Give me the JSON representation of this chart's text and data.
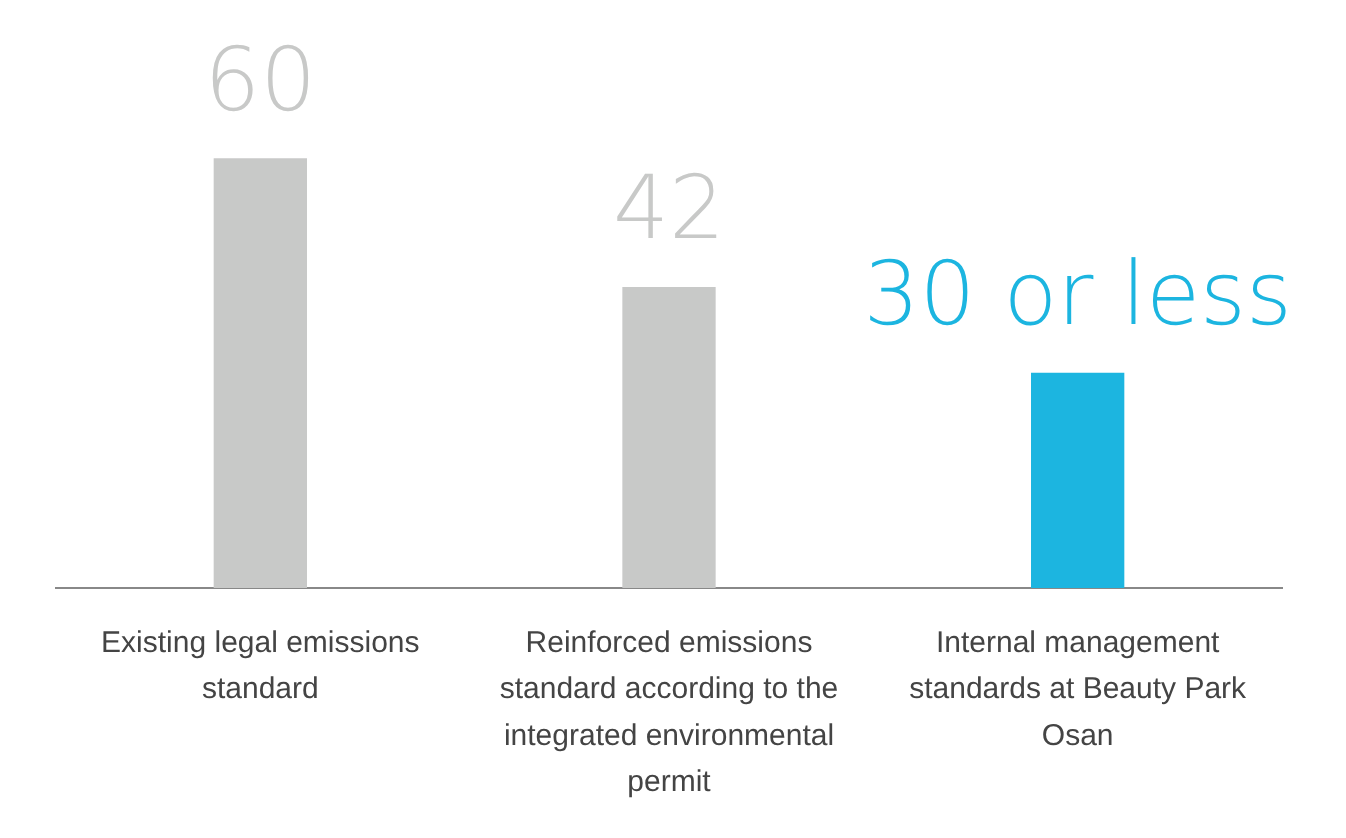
{
  "chart_data": {
    "type": "bar",
    "categories": [
      "Existing legal emissions standard",
      "Reinforced emissions standard according to the integrated environmental permit",
      "Internal management standards at Beauty Park Osan"
    ],
    "values": [
      60,
      42,
      30
    ],
    "colors": [
      "#c8c9c8",
      "#c8c9c8",
      "#1cb5e0"
    ],
    "value_labels": [
      "60",
      "42",
      "30 or less"
    ]
  }
}
